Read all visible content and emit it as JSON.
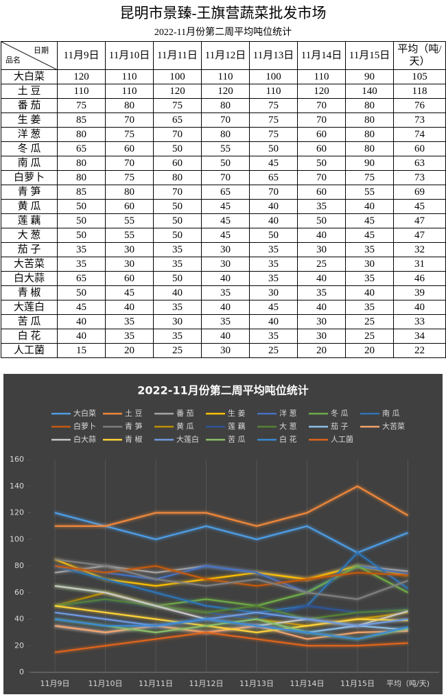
{
  "title": "昆明市景臻-王旗营蔬菜批发市场",
  "subtitle": "2022-11月份第二周平均吨位统计",
  "table": {
    "corner": [
      "日期",
      "品名"
    ],
    "columns": [
      "11月9日",
      "11月10日",
      "11月11日",
      "11月12日",
      "11月13日",
      "11月14日",
      "11月15日",
      "平均（吨/天）"
    ],
    "rows": [
      [
        "大白菜",
        120,
        110,
        100,
        110,
        100,
        110,
        90,
        105
      ],
      [
        "土 豆",
        110,
        110,
        120,
        120,
        110,
        120,
        140,
        118
      ],
      [
        "番 茄",
        75,
        80,
        75,
        80,
        75,
        70,
        80,
        76
      ],
      [
        "生 姜",
        85,
        70,
        65,
        70,
        75,
        70,
        80,
        73
      ],
      [
        "洋 葱",
        80,
        75,
        70,
        80,
        75,
        60,
        80,
        74
      ],
      [
        "冬 瓜",
        65,
        60,
        50,
        55,
        50,
        60,
        80,
        60
      ],
      [
        "南 瓜",
        80,
        70,
        60,
        50,
        45,
        50,
        90,
        63
      ],
      [
        "白萝卜",
        80,
        75,
        80,
        70,
        65,
        70,
        75,
        73
      ],
      [
        "青 笋",
        85,
        80,
        70,
        65,
        70,
        60,
        55,
        69
      ],
      [
        "黄 瓜",
        50,
        60,
        50,
        45,
        40,
        35,
        40,
        45
      ],
      [
        "莲 藕",
        50,
        55,
        50,
        45,
        40,
        50,
        45,
        47
      ],
      [
        "大 葱",
        50,
        55,
        50,
        45,
        50,
        40,
        45,
        47
      ],
      [
        "茄 子",
        35,
        30,
        35,
        30,
        35,
        30,
        35,
        32
      ],
      [
        "大苦菜",
        35,
        30,
        35,
        30,
        35,
        25,
        30,
        31
      ],
      [
        "白大蒜",
        65,
        60,
        50,
        40,
        35,
        40,
        35,
        46
      ],
      [
        "青 椒",
        50,
        45,
        40,
        35,
        30,
        35,
        40,
        39
      ],
      [
        "大莲白",
        45,
        40,
        35,
        40,
        45,
        40,
        35,
        40
      ],
      [
        "苦 瓜",
        40,
        35,
        30,
        35,
        40,
        30,
        25,
        33
      ],
      [
        "白 花",
        40,
        35,
        35,
        40,
        35,
        30,
        25,
        34
      ],
      [
        "人工菌",
        15,
        20,
        25,
        30,
        25,
        20,
        20,
        22
      ]
    ]
  },
  "chart_data": {
    "type": "line",
    "title": "2022-11月份第二周平均吨位统计",
    "categories": [
      "11月9日",
      "11月10日",
      "11月11日",
      "11月12日",
      "11月13日",
      "11月14日",
      "11月15日",
      "平均（吨/天)"
    ],
    "ylim": [
      0,
      160
    ],
    "yticks": [
      0,
      20,
      40,
      60,
      80,
      100,
      120,
      140,
      160
    ],
    "grid": true,
    "series": [
      {
        "name": "大白菜",
        "color": "#4e9ee6",
        "values": [
          120,
          110,
          100,
          110,
          100,
          110,
          90,
          105
        ]
      },
      {
        "name": "土 豆",
        "color": "#f0883a",
        "values": [
          110,
          110,
          120,
          120,
          110,
          120,
          140,
          118
        ]
      },
      {
        "name": "番 茄",
        "color": "#a5a5a5",
        "values": [
          75,
          80,
          75,
          80,
          75,
          70,
          80,
          76
        ]
      },
      {
        "name": "生 姜",
        "color": "#ffc000",
        "values": [
          85,
          70,
          65,
          70,
          75,
          70,
          80,
          73
        ]
      },
      {
        "name": "洋 葱",
        "color": "#4472c4",
        "values": [
          80,
          75,
          70,
          80,
          75,
          60,
          80,
          74
        ]
      },
      {
        "name": "冬 瓜",
        "color": "#70ad47",
        "values": [
          65,
          60,
          50,
          55,
          50,
          60,
          80,
          60
        ]
      },
      {
        "name": "南 瓜",
        "color": "#2e75b6",
        "values": [
          80,
          70,
          60,
          50,
          45,
          50,
          90,
          63
        ]
      },
      {
        "name": "白萝卜",
        "color": "#c55a11",
        "values": [
          80,
          75,
          80,
          70,
          65,
          70,
          75,
          73
        ]
      },
      {
        "name": "青 笋",
        "color": "#7f7f7f",
        "values": [
          85,
          80,
          70,
          65,
          70,
          60,
          55,
          69
        ]
      },
      {
        "name": "黄 瓜",
        "color": "#bf9000",
        "values": [
          50,
          60,
          50,
          45,
          40,
          35,
          40,
          45
        ]
      },
      {
        "name": "莲 藕",
        "color": "#2f5597",
        "values": [
          50,
          55,
          50,
          45,
          40,
          50,
          45,
          47
        ]
      },
      {
        "name": "大 葱",
        "color": "#548235",
        "values": [
          50,
          55,
          50,
          45,
          50,
          40,
          45,
          47
        ]
      },
      {
        "name": "茄 子",
        "color": "#8fbfe8",
        "values": [
          35,
          30,
          35,
          30,
          35,
          30,
          35,
          32
        ]
      },
      {
        "name": "大苦菜",
        "color": "#f4a46c",
        "values": [
          35,
          30,
          35,
          30,
          35,
          25,
          30,
          31
        ]
      },
      {
        "name": "白大蒜",
        "color": "#c9c9c9",
        "values": [
          65,
          60,
          50,
          40,
          35,
          40,
          35,
          46
        ]
      },
      {
        "name": "青 椒",
        "color": "#ffd43b",
        "values": [
          50,
          45,
          40,
          35,
          30,
          35,
          40,
          39
        ]
      },
      {
        "name": "大莲白",
        "color": "#6f9be0",
        "values": [
          45,
          40,
          35,
          40,
          45,
          40,
          35,
          40
        ]
      },
      {
        "name": "苦 瓜",
        "color": "#8cc168",
        "values": [
          40,
          35,
          30,
          35,
          40,
          30,
          25,
          33
        ]
      },
      {
        "name": "白 花",
        "color": "#3a8ad6",
        "values": [
          40,
          35,
          35,
          40,
          35,
          30,
          25,
          34
        ]
      },
      {
        "name": "人工菌",
        "color": "#e0651a",
        "values": [
          15,
          20,
          25,
          30,
          25,
          20,
          20,
          22
        ]
      }
    ]
  }
}
